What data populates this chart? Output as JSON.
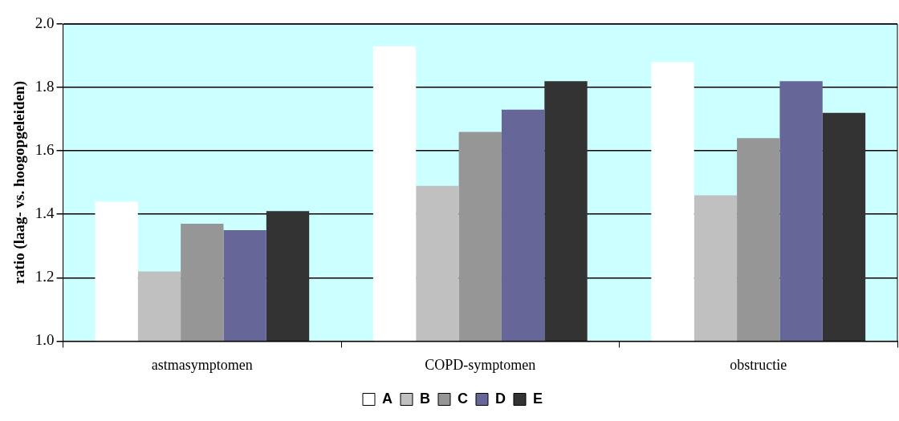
{
  "chart_data": {
    "type": "bar",
    "ylabel": "ratio (laag- vs. hoogopgeleiden)",
    "categories": [
      "astmasymptomen",
      "COPD-symptomen",
      "obstructie"
    ],
    "series": [
      {
        "name": "A",
        "color": "#ffffff",
        "values": [
          1.44,
          1.93,
          1.88
        ]
      },
      {
        "name": "B",
        "color": "#c0c0c0",
        "values": [
          1.22,
          1.49,
          1.46
        ]
      },
      {
        "name": "C",
        "color": "#969696",
        "values": [
          1.37,
          1.66,
          1.64
        ]
      },
      {
        "name": "D",
        "color": "#666699",
        "values": [
          1.35,
          1.73,
          1.82
        ]
      },
      {
        "name": "E",
        "color": "#333333",
        "values": [
          1.41,
          1.82,
          1.72
        ]
      }
    ],
    "ylim": [
      1.0,
      2.0
    ],
    "yticks": [
      {
        "value": 1.0,
        "label": "1.0"
      },
      {
        "value": 1.2,
        "label": "1.2"
      },
      {
        "value": 1.4,
        "label": "1.4"
      },
      {
        "value": 1.6,
        "label": "1.6"
      },
      {
        "value": 1.8,
        "label": "1.8"
      },
      {
        "value": 2.0,
        "label": "2.0"
      }
    ],
    "grid": "y",
    "legend": "bottom"
  }
}
